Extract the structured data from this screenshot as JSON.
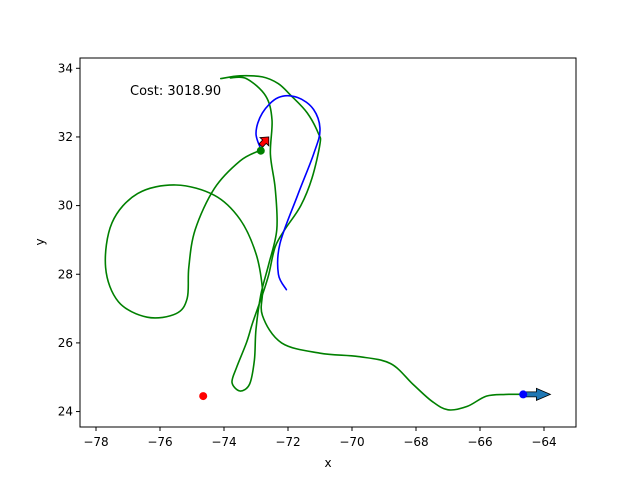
{
  "chart_data": {
    "type": "line",
    "title": "",
    "xlabel": "x",
    "ylabel": "y",
    "xlim": [
      -78.5,
      -63.0
    ],
    "ylim": [
      23.55,
      34.3
    ],
    "xticks": [
      -78,
      -76,
      -74,
      -72,
      -70,
      -68,
      -66,
      -64
    ],
    "yticks": [
      24,
      26,
      28,
      30,
      32,
      34
    ],
    "xtick_labels": [
      "−78",
      "−76",
      "−74",
      "−72",
      "−70",
      "−68",
      "−66",
      "−64"
    ],
    "ytick_labels": [
      "24",
      "26",
      "28",
      "30",
      "32",
      "34"
    ],
    "grid": false,
    "annotation": "Cost: 3018.90",
    "series": [
      {
        "color": "#008000",
        "points": [
          [
            -74.1,
            33.7
          ],
          [
            -73.5,
            33.78
          ],
          [
            -72.8,
            33.75
          ],
          [
            -72.3,
            33.55
          ],
          [
            -71.9,
            33.2
          ],
          [
            -71.4,
            32.7
          ],
          [
            -71.05,
            32.1
          ],
          [
            -71.0,
            31.8
          ],
          [
            -71.25,
            30.8
          ],
          [
            -71.6,
            30.0
          ],
          [
            -72.1,
            29.3
          ],
          [
            -72.4,
            28.8
          ],
          [
            -72.6,
            28.0
          ],
          [
            -72.8,
            27.4
          ],
          [
            -73.1,
            26.6
          ],
          [
            -73.3,
            26.0
          ],
          [
            -73.6,
            25.3
          ],
          [
            -73.75,
            24.85
          ],
          [
            -73.5,
            24.6
          ],
          [
            -73.2,
            24.8
          ],
          [
            -73.05,
            25.5
          ],
          [
            -73.0,
            26.4
          ],
          [
            -72.85,
            27.4
          ],
          [
            -72.6,
            28.3
          ],
          [
            -72.35,
            29.3
          ],
          [
            -72.4,
            30.5
          ],
          [
            -72.55,
            31.5
          ],
          [
            -72.5,
            32.5
          ],
          [
            -72.7,
            33.2
          ],
          [
            -73.3,
            33.7
          ],
          [
            -73.8,
            33.72
          ]
        ]
      },
      {
        "color": "#008000",
        "points": [
          [
            -72.9,
            31.6
          ],
          [
            -73.5,
            31.3
          ],
          [
            -74.3,
            30.5
          ],
          [
            -74.9,
            29.3
          ],
          [
            -75.1,
            28.2
          ],
          [
            -75.15,
            27.3
          ],
          [
            -75.5,
            26.85
          ],
          [
            -76.4,
            26.75
          ],
          [
            -77.3,
            27.2
          ],
          [
            -77.7,
            28.2
          ],
          [
            -77.5,
            29.5
          ],
          [
            -76.7,
            30.35
          ],
          [
            -75.5,
            30.6
          ],
          [
            -74.3,
            30.3
          ],
          [
            -73.5,
            29.6
          ],
          [
            -73.0,
            28.6
          ],
          [
            -72.8,
            27.6
          ],
          [
            -72.8,
            26.8
          ],
          [
            -72.2,
            26.0
          ],
          [
            -71.0,
            25.7
          ],
          [
            -69.8,
            25.6
          ],
          [
            -68.8,
            25.4
          ],
          [
            -68.1,
            24.8
          ],
          [
            -67.5,
            24.3
          ],
          [
            -67.0,
            24.05
          ],
          [
            -66.4,
            24.15
          ],
          [
            -65.8,
            24.45
          ],
          [
            -65.2,
            24.5
          ],
          [
            -64.65,
            24.5
          ]
        ]
      },
      {
        "color": "#0000ff",
        "points": [
          [
            -72.05,
            27.55
          ],
          [
            -72.3,
            28.0
          ],
          [
            -72.25,
            28.9
          ],
          [
            -71.7,
            30.3
          ],
          [
            -71.2,
            31.5
          ],
          [
            -71.0,
            32.2
          ],
          [
            -71.2,
            32.8
          ],
          [
            -71.7,
            33.15
          ],
          [
            -72.3,
            33.15
          ],
          [
            -72.8,
            32.7
          ],
          [
            -73.0,
            32.1
          ],
          [
            -72.8,
            31.55
          ]
        ]
      }
    ],
    "markers": [
      {
        "x": -74.65,
        "y": 24.45,
        "color": "#ff0000"
      },
      {
        "x": -72.85,
        "y": 31.6,
        "color": "#008000"
      },
      {
        "x": -64.65,
        "y": 24.5,
        "color": "#0000ff"
      }
    ],
    "arrows": [
      {
        "from": [
          -64.65,
          24.5
        ],
        "to": [
          -63.8,
          24.5
        ],
        "color": "#1f77b4"
      },
      {
        "from": [
          -72.85,
          31.75
        ],
        "to": [
          -72.6,
          32.0
        ],
        "color": "#ff0000"
      }
    ]
  }
}
